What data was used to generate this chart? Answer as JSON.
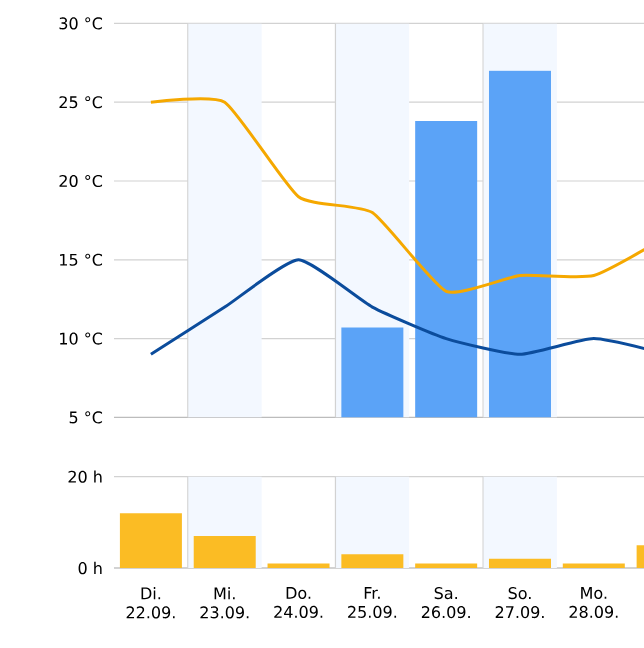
{
  "chart_data": [
    {
      "type": "line",
      "categories": [
        "Di. 22.09.",
        "Mi. 23.09.",
        "Do. 24.09.",
        "Fr. 25.09.",
        "Sa. 26.09.",
        "So. 27.09.",
        "Mo. 28.09.",
        null
      ],
      "series": [
        {
          "type": "bar",
          "color": "#5ba3f7",
          "values": [
            5,
            5,
            5,
            10.7,
            23.8,
            27,
            5,
            5
          ]
        },
        {
          "type": "line",
          "color": "#f5a800",
          "values": [
            25,
            25,
            19,
            18,
            13,
            14,
            14,
            16.5
          ]
        },
        {
          "type": "line",
          "color": "#0b4c9c",
          "values": [
            9,
            12,
            15,
            12,
            10,
            9,
            10,
            9
          ]
        }
      ],
      "ylim": [
        5,
        30
      ],
      "yticks": [
        {
          "value": 5,
          "label": "5 °C"
        },
        {
          "value": 10,
          "label": "10 °C"
        },
        {
          "value": 15,
          "label": "15 °C"
        },
        {
          "value": 20,
          "label": "20 °C"
        },
        {
          "value": 25,
          "label": "25 °C"
        },
        {
          "value": 30,
          "label": "30 °C"
        }
      ],
      "grid": "y",
      "tick_labels": "y",
      "bands": [
        {
          "axis": "x",
          "from": "Mi. 23.09.",
          "to": "Mi. 23.09.",
          "color": "#f3f8ff"
        },
        {
          "axis": "x",
          "from": "Fr. 25.09.",
          "to": "Fr. 25.09.",
          "color": "#f3f8ff"
        },
        {
          "axis": "x",
          "from": "So. 27.09.",
          "to": "So. 27.09.",
          "color": "#f3f8ff"
        }
      ]
    },
    {
      "type": "bar",
      "categories": [
        "Di. 22.09.",
        "Mi. 23.09.",
        "Do. 24.09.",
        "Fr. 25.09.",
        "Sa. 26.09.",
        "So. 27.09.",
        "Mo. 28.09.",
        null
      ],
      "values": [
        12,
        7,
        1,
        3,
        1,
        2,
        1,
        5
      ],
      "color": "#fbbc24",
      "ylim": [
        0,
        20
      ],
      "yticks": [
        {
          "value": 0,
          "label": "0 h"
        },
        {
          "value": 20,
          "label": "20 h"
        }
      ],
      "grid": "y",
      "bands": [
        {
          "axis": "x",
          "from": "Mi. 23.09.",
          "to": "Mi. 23.09.",
          "color": "#f3f8ff"
        },
        {
          "axis": "x",
          "from": "Fr. 25.09.",
          "to": "Fr. 25.09.",
          "color": "#f3f8ff"
        },
        {
          "axis": "x",
          "from": "So. 27.09.",
          "to": "So. 27.09.",
          "color": "#f3f8ff"
        }
      ]
    }
  ]
}
